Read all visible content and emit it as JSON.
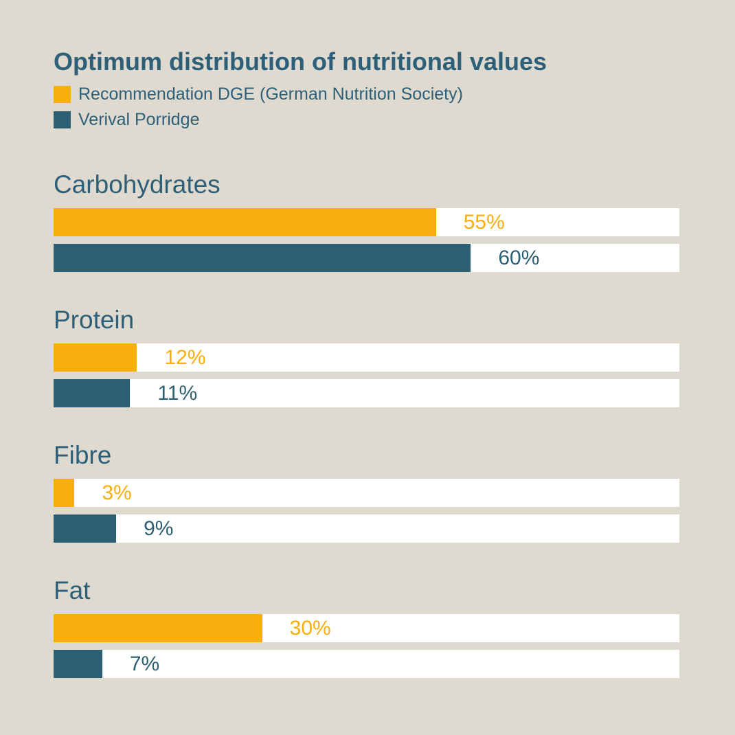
{
  "title": "Optimum distribution of nutritional values",
  "legend": [
    {
      "label": "Recommendation DGE (German Nutrition Society)",
      "color": "#F8AE0C"
    },
    {
      "label": "Verival Porridge",
      "color": "#2D5F73"
    }
  ],
  "chart_data": {
    "type": "bar",
    "orientation": "horizontal",
    "title": "Optimum distribution of nutritional values",
    "categories": [
      "Carbohydrates",
      "Protein",
      "Fibre",
      "Fat"
    ],
    "series": [
      {
        "name": "Recommendation DGE (German Nutrition Society)",
        "color": "#F8AE0C",
        "values": [
          55,
          12,
          3,
          30
        ]
      },
      {
        "name": "Verival Porridge",
        "color": "#2D5F73",
        "values": [
          60,
          11,
          9,
          7
        ]
      }
    ],
    "value_suffix": "%",
    "value_labels": [
      [
        "55%",
        "12%",
        "3%",
        "30%"
      ],
      [
        "60%",
        "11%",
        "9%",
        "7%"
      ]
    ],
    "axis_max": 90,
    "grid": false,
    "legend_position": "top-left",
    "track_color": "#FFFFFF"
  },
  "colors": {
    "background": "#DEDACF",
    "text": "#2E5F79",
    "orange": "#F8AE0C",
    "teal": "#2D5F73",
    "track": "#FFFFFF"
  }
}
